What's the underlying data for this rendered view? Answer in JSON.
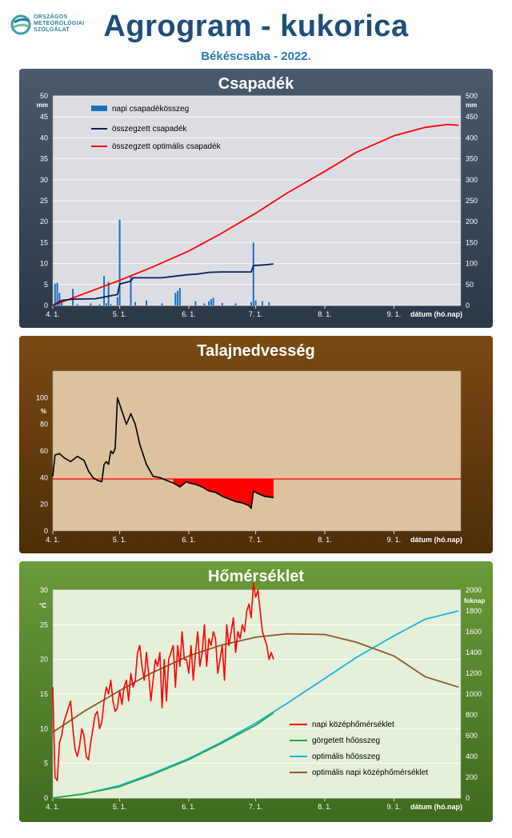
{
  "header": {
    "title": "Agrogram - kukorica",
    "subtitle": "Békéscsaba - 2022.",
    "logo_lines": [
      "ORSZÁGOS",
      "METEOROLÓGIAI",
      "SZOLGÁLAT"
    ]
  },
  "chart_data": [
    {
      "type": "bar",
      "title": "Csapadék",
      "x_start": "2022-04-01",
      "x_end": "2022-09-30",
      "xticks": [
        "4. 1.",
        "5. 1.",
        "6. 1.",
        "7. 1.",
        "8. 1.",
        "9. 1."
      ],
      "xlabel": "dátum (hó.nap)",
      "ylabel_left": "mm",
      "ylabel_right": "mm",
      "ylim_left": [
        0,
        50
      ],
      "ylim_right": [
        0,
        500
      ],
      "yticks_left": [
        "0",
        "5",
        "10",
        "15",
        "20",
        "25",
        "30",
        "35",
        "40",
        "45",
        "50"
      ],
      "yticks_right": [
        "0",
        "50",
        "100",
        "150",
        "200",
        "250",
        "300",
        "350",
        "400",
        "450",
        "500"
      ],
      "legend": [
        "napi csapadékösszeg",
        "összegzett csapadék",
        "összegzett optimális csapadék"
      ],
      "colors": {
        "bars": "#1f6fbf",
        "sum": "#0b2060",
        "optimal": "#ff0000",
        "plot_bg": "#dcdde3"
      },
      "series": [
        {
          "name": "napi csapadékösszeg",
          "axis": "left",
          "x": [
            "2022-04-02",
            "2022-04-03",
            "2022-04-04",
            "2022-04-05",
            "2022-04-10",
            "2022-04-12",
            "2022-04-18",
            "2022-04-22",
            "2022-04-24",
            "2022-04-25",
            "2022-04-26",
            "2022-04-27",
            "2022-04-30",
            "2022-05-01",
            "2022-05-06",
            "2022-05-08",
            "2022-05-13",
            "2022-05-20",
            "2022-05-26",
            "2022-05-27",
            "2022-05-28",
            "2022-06-04",
            "2022-06-08",
            "2022-06-10",
            "2022-06-11",
            "2022-06-12",
            "2022-06-16",
            "2022-06-22",
            "2022-06-29",
            "2022-06-30",
            "2022-07-01",
            "2022-07-04",
            "2022-07-07"
          ],
          "values": [
            5.2,
            5.4,
            3.0,
            0.8,
            4.0,
            0.3,
            0.5,
            0.3,
            7.0,
            0.5,
            5.6,
            0.3,
            2.0,
            20.5,
            7.2,
            0.8,
            1.2,
            0.5,
            3.0,
            3.5,
            4.2,
            1.0,
            0.5,
            1.0,
            1.5,
            1.8,
            0.6,
            0.5,
            0.8,
            15.0,
            1.2,
            1.0,
            0.8
          ]
        },
        {
          "name": "összegzett csapadék",
          "axis": "right",
          "x": [
            "2022-04-01",
            "2022-04-05",
            "2022-04-10",
            "2022-04-20",
            "2022-04-24",
            "2022-04-27",
            "2022-04-30",
            "2022-05-01",
            "2022-05-06",
            "2022-05-07",
            "2022-05-20",
            "2022-05-26",
            "2022-05-31",
            "2022-06-05",
            "2022-06-10",
            "2022-06-15",
            "2022-06-29",
            "2022-06-30",
            "2022-07-05",
            "2022-07-09"
          ],
          "values": [
            0,
            12,
            15,
            16,
            20,
            23,
            26,
            51,
            58,
            66,
            66,
            70,
            73,
            75,
            79,
            80,
            80,
            95,
            97,
            99
          ]
        },
        {
          "name": "összegzett optimális csapadék",
          "axis": "right",
          "x": [
            "2022-04-01",
            "2022-04-15",
            "2022-05-01",
            "2022-05-15",
            "2022-06-01",
            "2022-06-15",
            "2022-07-01",
            "2022-07-15",
            "2022-08-01",
            "2022-08-15",
            "2022-09-01",
            "2022-09-15",
            "2022-09-25",
            "2022-09-30"
          ],
          "values": [
            0,
            28,
            60,
            90,
            130,
            170,
            220,
            268,
            320,
            365,
            405,
            425,
            432,
            430
          ]
        }
      ]
    },
    {
      "type": "line",
      "title": "Talajnedvesség",
      "x_start": "2022-04-01",
      "x_end": "2022-09-30",
      "xticks": [
        "4. 1.",
        "5. 1.",
        "6. 1.",
        "7. 1.",
        "8. 1.",
        "9. 1."
      ],
      "xlabel": "dátum (hó.nap)",
      "ylabel": "%",
      "ylim": [
        0,
        120
      ],
      "yticks": [
        "0",
        "20",
        "40",
        "60",
        "80",
        "100"
      ],
      "threshold": 39,
      "colors": {
        "line": "#000000",
        "threshold": "#ff0000",
        "deficit_fill": "#ff0000",
        "plot_bg": "#dcc29e"
      },
      "series": [
        {
          "name": "",
          "x": [
            "2022-04-01",
            "2022-04-02",
            "2022-04-04",
            "2022-04-06",
            "2022-04-09",
            "2022-04-12",
            "2022-04-15",
            "2022-04-17",
            "2022-04-19",
            "2022-04-21",
            "2022-04-23",
            "2022-04-24",
            "2022-04-25",
            "2022-04-26",
            "2022-04-27",
            "2022-04-28",
            "2022-04-29",
            "2022-04-30",
            "2022-05-02",
            "2022-05-04",
            "2022-05-05",
            "2022-05-06",
            "2022-05-08",
            "2022-05-10",
            "2022-05-13",
            "2022-05-16",
            "2022-05-19",
            "2022-05-22",
            "2022-05-25",
            "2022-05-28",
            "2022-05-31",
            "2022-06-01",
            "2022-06-04",
            "2022-06-07",
            "2022-06-10",
            "2022-06-13",
            "2022-06-16",
            "2022-06-19",
            "2022-06-22",
            "2022-06-25",
            "2022-06-28",
            "2022-06-29",
            "2022-06-30",
            "2022-07-02",
            "2022-07-05",
            "2022-07-09"
          ],
          "values": [
            41,
            57,
            58,
            55,
            52,
            56,
            53,
            45,
            40,
            38,
            37,
            50,
            52,
            50,
            60,
            58,
            62,
            100,
            90,
            80,
            84,
            88,
            80,
            65,
            50,
            41,
            40,
            38,
            36,
            33,
            37,
            36,
            35,
            33,
            30,
            29,
            26,
            24,
            22,
            21,
            19,
            17,
            30,
            28,
            26,
            25
          ]
        }
      ]
    },
    {
      "type": "line",
      "title": "Hőmérséklet",
      "x_start": "2022-04-01",
      "x_end": "2022-09-30",
      "xticks": [
        "4. 1.",
        "5. 1.",
        "6. 1.",
        "7. 1.",
        "8. 1.",
        "9. 1."
      ],
      "xlabel": "dátum (hó.nap)",
      "ylabel_left": "°C",
      "ylabel_right": "foknap",
      "ylim_left": [
        0,
        30
      ],
      "ylim_right": [
        0,
        2000
      ],
      "yticks_left": [
        "0",
        "5",
        "10",
        "15",
        "20",
        "25",
        "30"
      ],
      "yticks_right": [
        "0",
        "200",
        "400",
        "600",
        "800",
        "1000",
        "1200",
        "1400",
        "1600",
        "1800",
        "2000"
      ],
      "legend": [
        "napi középhőmérséklet",
        "görgetett hőösszeg",
        "optimális hőösszeg",
        "optimális napi középhőmérséklet"
      ],
      "colors": {
        "daily": "#ff0000",
        "rolling": "#22aa44",
        "opt_sum": "#1ab0e8",
        "opt_daily": "#8b5a2b",
        "plot_bg": "#e4f0da"
      },
      "series": [
        {
          "name": "napi középhőmérséklet",
          "axis": "left",
          "x": [
            "2022-04-01",
            "2022-04-02",
            "2022-04-03",
            "2022-04-04",
            "2022-04-05",
            "2022-04-06",
            "2022-04-07",
            "2022-04-08",
            "2022-04-09",
            "2022-04-10",
            "2022-04-11",
            "2022-04-12",
            "2022-04-13",
            "2022-04-14",
            "2022-04-15",
            "2022-04-16",
            "2022-04-17",
            "2022-04-18",
            "2022-04-19",
            "2022-04-20",
            "2022-04-21",
            "2022-04-22",
            "2022-04-23",
            "2022-04-24",
            "2022-04-25",
            "2022-04-26",
            "2022-04-27",
            "2022-04-28",
            "2022-04-29",
            "2022-04-30",
            "2022-05-01",
            "2022-05-02",
            "2022-05-03",
            "2022-05-04",
            "2022-05-05",
            "2022-05-06",
            "2022-05-07",
            "2022-05-08",
            "2022-05-09",
            "2022-05-10",
            "2022-05-11",
            "2022-05-12",
            "2022-05-13",
            "2022-05-14",
            "2022-05-15",
            "2022-05-16",
            "2022-05-17",
            "2022-05-18",
            "2022-05-19",
            "2022-05-20",
            "2022-05-21",
            "2022-05-22",
            "2022-05-23",
            "2022-05-24",
            "2022-05-25",
            "2022-05-26",
            "2022-05-27",
            "2022-05-28",
            "2022-05-29",
            "2022-05-30",
            "2022-05-31",
            "2022-06-01",
            "2022-06-02",
            "2022-06-03",
            "2022-06-04",
            "2022-06-05",
            "2022-06-06",
            "2022-06-07",
            "2022-06-08",
            "2022-06-09",
            "2022-06-10",
            "2022-06-11",
            "2022-06-12",
            "2022-06-13",
            "2022-06-14",
            "2022-06-15",
            "2022-06-16",
            "2022-06-17",
            "2022-06-18",
            "2022-06-19",
            "2022-06-20",
            "2022-06-21",
            "2022-06-22",
            "2022-06-23",
            "2022-06-24",
            "2022-06-25",
            "2022-06-26",
            "2022-06-27",
            "2022-06-28",
            "2022-06-29",
            "2022-06-30",
            "2022-07-01",
            "2022-07-02",
            "2022-07-03",
            "2022-07-04",
            "2022-07-05",
            "2022-07-06",
            "2022-07-07",
            "2022-07-08",
            "2022-07-09"
          ],
          "values": [
            16,
            3,
            2.5,
            8,
            9,
            11,
            12,
            13,
            14,
            10,
            7,
            6,
            7.5,
            10,
            9,
            6,
            5.5,
            8,
            10,
            12,
            12.5,
            10,
            11,
            14,
            16,
            15,
            17,
            14,
            12.5,
            13,
            15.5,
            13.5,
            16,
            17,
            14,
            18,
            16,
            17,
            21,
            22,
            19,
            17,
            21,
            18,
            14,
            17,
            20,
            19,
            21,
            13,
            20,
            14,
            20,
            21,
            22,
            16,
            22,
            19,
            24,
            20,
            20,
            18,
            22,
            17,
            21,
            24,
            19,
            21,
            25,
            19,
            23,
            22,
            24,
            23,
            18,
            20,
            22,
            17,
            25,
            22,
            24,
            26,
            21,
            24,
            23,
            25,
            24,
            27,
            28,
            26,
            31,
            29,
            30,
            27,
            24,
            23,
            22,
            20,
            21,
            20
          ]
        },
        {
          "name": "görgetett hőösszeg",
          "axis": "right",
          "x": [
            "2022-04-01",
            "2022-04-15",
            "2022-05-01",
            "2022-05-15",
            "2022-06-01",
            "2022-06-15",
            "2022-07-01",
            "2022-07-09"
          ],
          "values": [
            0,
            40,
            110,
            220,
            370,
            520,
            700,
            820
          ]
        },
        {
          "name": "optimális hőösszeg",
          "axis": "right",
          "x": [
            "2022-04-01",
            "2022-04-15",
            "2022-05-01",
            "2022-05-15",
            "2022-06-01",
            "2022-06-15",
            "2022-07-01",
            "2022-07-15",
            "2022-08-01",
            "2022-08-15",
            "2022-09-01",
            "2022-09-15",
            "2022-09-30"
          ],
          "values": [
            0,
            40,
            120,
            230,
            380,
            530,
            720,
            910,
            1150,
            1350,
            1560,
            1720,
            1800
          ]
        },
        {
          "name": "optimális napi középhőmérséklet",
          "axis": "left",
          "x": [
            "2022-04-01",
            "2022-04-15",
            "2022-05-01",
            "2022-05-15",
            "2022-06-01",
            "2022-06-15",
            "2022-07-01",
            "2022-07-15",
            "2022-08-01",
            "2022-08-15",
            "2022-09-01",
            "2022-09-15",
            "2022-09-30"
          ],
          "values": [
            9.5,
            12.5,
            15.5,
            18,
            20.5,
            22,
            23.2,
            23.7,
            23.6,
            22.5,
            20.5,
            17.5,
            16
          ]
        }
      ]
    }
  ]
}
